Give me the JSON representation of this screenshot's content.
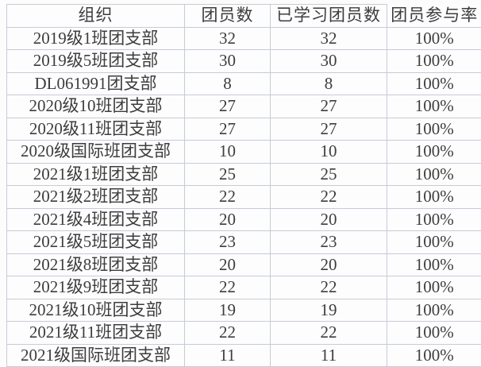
{
  "colors": {
    "border": "#c6cbd5",
    "text": "#3d3d3d",
    "background": "#fdfdfe"
  },
  "table": {
    "columns": [
      "组织",
      "团员数",
      "已学习团员数",
      "团员参与率"
    ],
    "rows": [
      [
        "2019级1班团支部",
        "32",
        "32",
        "100%"
      ],
      [
        "2019级5班团支部",
        "30",
        "30",
        "100%"
      ],
      [
        "DL061991团支部",
        "8",
        "8",
        "100%"
      ],
      [
        "2020级10班团支部",
        "27",
        "27",
        "100%"
      ],
      [
        "2020级11班团支部",
        "27",
        "27",
        "100%"
      ],
      [
        "2020级国际班团支部",
        "10",
        "10",
        "100%"
      ],
      [
        "2021级1班团支部",
        "25",
        "25",
        "100%"
      ],
      [
        "2021级2班团支部",
        "22",
        "22",
        "100%"
      ],
      [
        "2021级4班团支部",
        "20",
        "20",
        "100%"
      ],
      [
        "2021级5班团支部",
        "23",
        "23",
        "100%"
      ],
      [
        "2021级8班团支部",
        "20",
        "20",
        "100%"
      ],
      [
        "2021级9班团支部",
        "22",
        "22",
        "100%"
      ],
      [
        "2021级10班团支部",
        "19",
        "19",
        "100%"
      ],
      [
        "2021级11班团支部",
        "22",
        "22",
        "100%"
      ],
      [
        "2021级国际班团支部",
        "11",
        "11",
        "100%"
      ]
    ]
  },
  "chart_data": {
    "type": "table",
    "title": "",
    "columns": [
      "组织",
      "团员数",
      "已学习团员数",
      "团员参与率"
    ],
    "categories": [
      "2019级1班团支部",
      "2019级5班团支部",
      "DL061991团支部",
      "2020级10班团支部",
      "2020级11班团支部",
      "2020级国际班团支部",
      "2021级1班团支部",
      "2021级2班团支部",
      "2021级4班团支部",
      "2021级5班团支部",
      "2021级8班团支部",
      "2021级9班团支部",
      "2021级10班团支部",
      "2021级11班团支部",
      "2021级国际班团支部"
    ],
    "series": [
      {
        "name": "团员数",
        "values": [
          32,
          30,
          8,
          27,
          27,
          10,
          25,
          22,
          20,
          23,
          20,
          22,
          19,
          22,
          11
        ]
      },
      {
        "name": "已学习团员数",
        "values": [
          32,
          30,
          8,
          27,
          27,
          10,
          25,
          22,
          20,
          23,
          20,
          22,
          19,
          22,
          11
        ]
      },
      {
        "name": "团员参与率",
        "values": [
          "100%",
          "100%",
          "100%",
          "100%",
          "100%",
          "100%",
          "100%",
          "100%",
          "100%",
          "100%",
          "100%",
          "100%",
          "100%",
          "100%",
          "100%"
        ]
      }
    ],
    "layout": {
      "grid": "on",
      "header_row": true
    }
  }
}
